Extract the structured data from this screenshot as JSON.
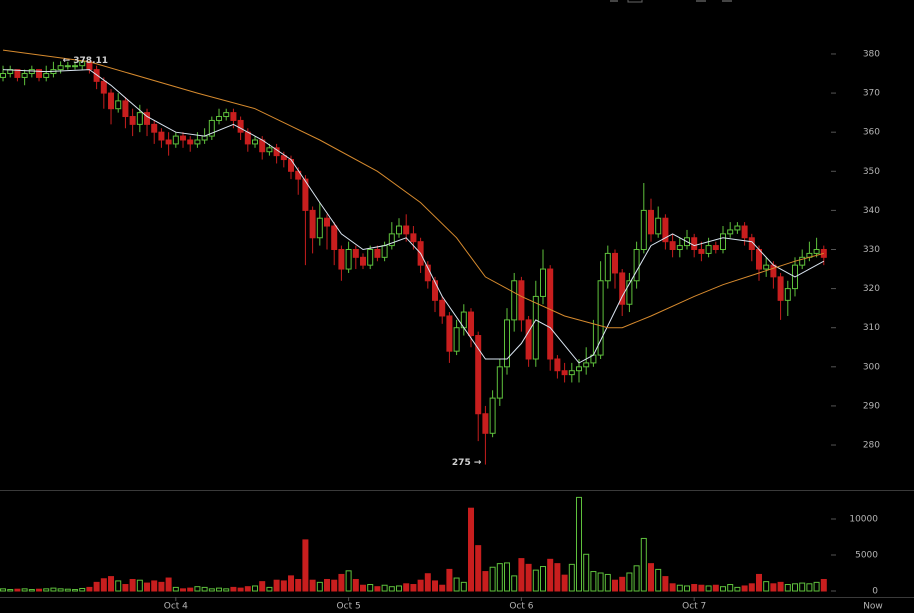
{
  "chart_data": {
    "type": "candlestick",
    "up_color": "#5fc13d",
    "down_color": "#c81e1e",
    "open": [
      374,
      375,
      376,
      374,
      375,
      376,
      374,
      375,
      376,
      377,
      377,
      377,
      378,
      376,
      373,
      370,
      366,
      368,
      364,
      362,
      365,
      362,
      360,
      358,
      357,
      359,
      358,
      357,
      358,
      359,
      363,
      364,
      365,
      363,
      360,
      357,
      358,
      355,
      356,
      354,
      353,
      350,
      348,
      340,
      333,
      338,
      336,
      330,
      325,
      330,
      328,
      326,
      330,
      328,
      331,
      334,
      336,
      334,
      332,
      326,
      322,
      317,
      313,
      304,
      310,
      314,
      308,
      288,
      283,
      292,
      300,
      312,
      322,
      312,
      302,
      318,
      325,
      302,
      299,
      298,
      299,
      300,
      301,
      303,
      322,
      329,
      324,
      316,
      322,
      330,
      340,
      334,
      338,
      332,
      330,
      331,
      333,
      330,
      329,
      331,
      330,
      334,
      335,
      336,
      333,
      330,
      325,
      326,
      323,
      317,
      320,
      326,
      328,
      329,
      330
    ],
    "high": [
      377,
      377,
      376,
      376,
      377,
      376,
      377,
      378,
      378.11,
      378,
      378,
      378,
      378,
      377,
      374,
      371,
      370,
      369,
      366,
      367,
      366,
      363,
      361,
      360,
      360,
      360,
      359,
      360,
      361,
      364,
      366,
      366,
      366,
      364,
      361,
      359,
      359,
      357,
      357,
      355,
      354,
      351,
      349,
      341,
      342,
      339,
      337,
      331,
      332,
      331,
      329,
      331,
      331,
      332,
      337,
      338,
      339,
      336,
      333,
      327,
      323,
      318,
      314,
      312,
      316,
      315,
      309,
      290,
      294,
      302,
      315,
      324,
      323,
      313,
      322,
      330,
      326,
      303,
      301,
      301,
      302,
      305,
      312,
      327,
      331,
      330,
      325,
      324,
      332,
      347,
      343,
      341,
      339,
      334,
      333,
      335,
      334,
      332,
      333,
      332,
      336,
      337,
      337,
      337,
      334,
      331,
      328,
      327,
      324,
      322,
      328,
      330,
      332,
      333,
      331
    ],
    "low": [
      373,
      374,
      373,
      372,
      374,
      373,
      373,
      374,
      375,
      376,
      376,
      376,
      375,
      371,
      366,
      362,
      365,
      361,
      359,
      360,
      359,
      357,
      356,
      354,
      356,
      356,
      355,
      356,
      357,
      358,
      362,
      363,
      361,
      358,
      355,
      356,
      353,
      354,
      352,
      351,
      348,
      344,
      326,
      329,
      331,
      330,
      326,
      322,
      324,
      325,
      325,
      325,
      327,
      327,
      330,
      333,
      332,
      330,
      324,
      320,
      314,
      311,
      301,
      303,
      308,
      305,
      281,
      275,
      282,
      290,
      298,
      309,
      309,
      300,
      300,
      316,
      299,
      297,
      296,
      296,
      296,
      298,
      300,
      302,
      320,
      320,
      313,
      314,
      320,
      329,
      332,
      333,
      330,
      328,
      328,
      330,
      328,
      327,
      328,
      329,
      329,
      333,
      334,
      331,
      327,
      322,
      323,
      320,
      312,
      313,
      318,
      325,
      327,
      328,
      326
    ],
    "close": [
      375,
      376,
      374,
      375,
      376,
      374,
      375,
      376,
      377,
      377,
      377,
      378,
      376,
      373,
      370,
      366,
      368,
      364,
      362,
      365,
      362,
      360,
      358,
      357,
      359,
      358,
      357,
      358,
      359,
      363,
      364,
      365,
      363,
      360,
      357,
      358,
      355,
      356,
      354,
      353,
      350,
      348,
      340,
      333,
      338,
      336,
      330,
      325,
      330,
      328,
      326,
      330,
      328,
      331,
      334,
      336,
      334,
      332,
      326,
      322,
      317,
      313,
      304,
      310,
      314,
      308,
      288,
      283,
      292,
      300,
      312,
      322,
      312,
      302,
      318,
      325,
      302,
      299,
      298,
      299,
      300,
      301,
      303,
      322,
      329,
      324,
      316,
      322,
      330,
      340,
      334,
      338,
      332,
      330,
      331,
      333,
      330,
      329,
      331,
      330,
      334,
      335,
      336,
      333,
      330,
      325,
      326,
      323,
      317,
      320,
      326,
      328,
      329,
      330,
      328
    ],
    "volume": [
      300,
      200,
      250,
      300,
      200,
      250,
      300,
      400,
      300,
      250,
      200,
      350,
      500,
      1200,
      1700,
      2000,
      1400,
      900,
      1600,
      1500,
      1100,
      1400,
      1200,
      1800,
      500,
      300,
      400,
      600,
      500,
      300,
      400,
      300,
      500,
      400,
      600,
      700,
      1300,
      500,
      1500,
      1400,
      2100,
      1600,
      7100,
      1500,
      1200,
      1600,
      1500,
      2300,
      2800,
      1600,
      800,
      900,
      600,
      800,
      600,
      700,
      1000,
      900,
      1500,
      2400,
      1400,
      800,
      3000,
      1800,
      1200,
      11500,
      6300,
      2700,
      3300,
      3800,
      3900,
      2100,
      4500,
      3700,
      2900,
      3400,
      4400,
      3800,
      2200,
      3700,
      13000,
      5100,
      2700,
      2500,
      2300,
      1500,
      1900,
      2500,
      3500,
      7300,
      3800,
      3000,
      2000,
      1000,
      800,
      700,
      900,
      800,
      700,
      800,
      600,
      900,
      500,
      700,
      1000,
      2300,
      1300,
      1000,
      1200,
      900,
      1000,
      1100,
      1000,
      1200,
      1600
    ],
    "lines": [
      {
        "color": "#d9e4f0",
        "x": [
          0,
          6,
          12,
          15,
          20,
          24,
          28,
          32,
          36,
          40,
          44,
          47,
          50,
          53,
          56,
          58,
          61,
          64,
          67,
          70,
          72,
          74,
          76,
          80,
          82,
          86,
          90,
          93,
          96,
          100,
          104,
          107,
          110,
          114
        ],
        "values": [
          376,
          375.5,
          376,
          372,
          364,
          360,
          359,
          362,
          358,
          353,
          342,
          334,
          330,
          331,
          333,
          329,
          318,
          310,
          302,
          302,
          306,
          312,
          310,
          301,
          303,
          318,
          331,
          334,
          331,
          333,
          332,
          326,
          323,
          327
        ]
      },
      {
        "color": "#d68a2e",
        "x": [
          0,
          12,
          27,
          35,
          44,
          52,
          58,
          63,
          67,
          72,
          78,
          84,
          86,
          90,
          96,
          100,
          105,
          110,
          114
        ],
        "values": [
          381,
          378,
          370,
          366,
          358,
          350,
          342,
          333,
          323,
          318,
          313,
          310,
          310,
          313,
          318,
          321,
          324,
          327,
          329
        ]
      }
    ],
    "annotations": [
      {
        "text": "← 378.11",
        "x": 8,
        "y": 378.11
      },
      {
        "text": "275 →",
        "x": 67,
        "y": 275
      }
    ],
    "xlim": [
      -0.42,
      117.64
    ],
    "xticks": [
      {
        "value": 24,
        "label": "Oct 4"
      },
      {
        "value": 48,
        "label": "Oct 5"
      },
      {
        "value": 72,
        "label": "Oct 6"
      },
      {
        "value": 96,
        "label": "Oct 7"
      }
    ],
    "now_label": "Now",
    "ylim": [
      268.5,
      393.8
    ],
    "yticks": [
      280,
      290,
      300,
      310,
      320,
      330,
      340,
      350,
      360,
      370,
      380
    ],
    "volume_lim": [
      -833,
      13889
    ],
    "volume_ticks": [
      0,
      5000,
      10000
    ]
  }
}
